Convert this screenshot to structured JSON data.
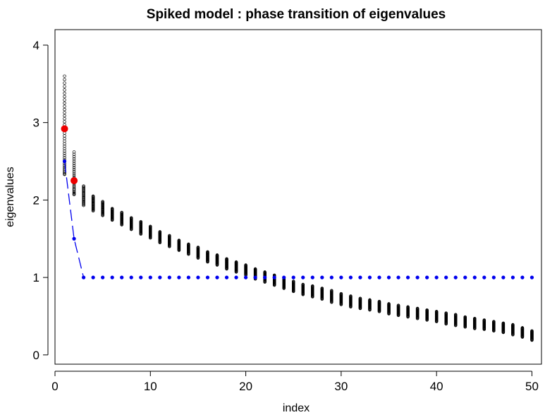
{
  "chart_data": {
    "type": "scatter",
    "title": "Spiked model : phase transition of eigenvalues",
    "xlabel": "index",
    "ylabel": "eigenvalues",
    "xlim": [
      0,
      51
    ],
    "ylim": [
      -0.12,
      4.2
    ],
    "xticks": [
      0,
      10,
      20,
      30,
      40,
      50
    ],
    "yticks": [
      0,
      1,
      2,
      3,
      4
    ],
    "grid": false,
    "legend": "none",
    "colors": {
      "sample_points": "#000000",
      "population": "#0000ee",
      "limit_points": "#ee0000"
    },
    "series": [
      {
        "marker": "open-circle",
        "x": [
          1,
          2,
          3,
          4,
          5,
          6,
          7,
          8,
          9,
          10,
          11,
          12,
          13,
          14,
          15,
          16,
          17,
          18,
          19,
          20,
          21,
          22,
          23,
          24,
          25,
          26,
          27,
          28,
          29,
          30,
          31,
          32,
          33,
          34,
          35,
          36,
          37,
          38,
          39,
          40,
          41,
          42,
          43,
          44,
          45,
          46,
          47,
          48,
          49,
          50
        ],
        "y_min": [
          2.33,
          2.07,
          1.93,
          1.86,
          1.8,
          1.74,
          1.68,
          1.62,
          1.56,
          1.51,
          1.45,
          1.4,
          1.35,
          1.3,
          1.25,
          1.2,
          1.16,
          1.11,
          1.07,
          1.03,
          0.98,
          0.94,
          0.9,
          0.86,
          0.82,
          0.78,
          0.75,
          0.72,
          0.68,
          0.65,
          0.62,
          0.6,
          0.58,
          0.56,
          0.53,
          0.51,
          0.49,
          0.47,
          0.45,
          0.43,
          0.4,
          0.38,
          0.36,
          0.34,
          0.33,
          0.31,
          0.29,
          0.26,
          0.23,
          0.19
        ],
        "y_max": [
          3.6,
          2.62,
          2.18,
          2.05,
          1.98,
          1.89,
          1.84,
          1.77,
          1.72,
          1.66,
          1.59,
          1.54,
          1.48,
          1.43,
          1.39,
          1.33,
          1.29,
          1.24,
          1.2,
          1.16,
          1.11,
          1.07,
          1.03,
          0.99,
          0.95,
          0.91,
          0.89,
          0.86,
          0.83,
          0.79,
          0.76,
          0.73,
          0.71,
          0.69,
          0.66,
          0.64,
          0.62,
          0.6,
          0.58,
          0.56,
          0.54,
          0.52,
          0.49,
          0.47,
          0.45,
          0.43,
          0.41,
          0.39,
          0.35,
          0.31
        ]
      },
      {
        "marker": "filled-dot-dashed-line",
        "x": [
          1,
          2,
          3,
          4,
          5,
          6,
          7,
          8,
          9,
          10,
          11,
          12,
          13,
          14,
          15,
          16,
          17,
          18,
          19,
          20,
          21,
          22,
          23,
          24,
          25,
          26,
          27,
          28,
          29,
          30,
          31,
          32,
          33,
          34,
          35,
          36,
          37,
          38,
          39,
          40,
          41,
          42,
          43,
          44,
          45,
          46,
          47,
          48,
          49,
          50
        ],
        "y": [
          2.5,
          1.5,
          1,
          1,
          1,
          1,
          1,
          1,
          1,
          1,
          1,
          1,
          1,
          1,
          1,
          1,
          1,
          1,
          1,
          1,
          1,
          1,
          1,
          1,
          1,
          1,
          1,
          1,
          1,
          1,
          1,
          1,
          1,
          1,
          1,
          1,
          1,
          1,
          1,
          1,
          1,
          1,
          1,
          1,
          1,
          1,
          1,
          1,
          1,
          1
        ]
      },
      {
        "marker": "large-filled-dot",
        "x": [
          1,
          2
        ],
        "y": [
          2.92,
          2.25
        ]
      }
    ]
  }
}
